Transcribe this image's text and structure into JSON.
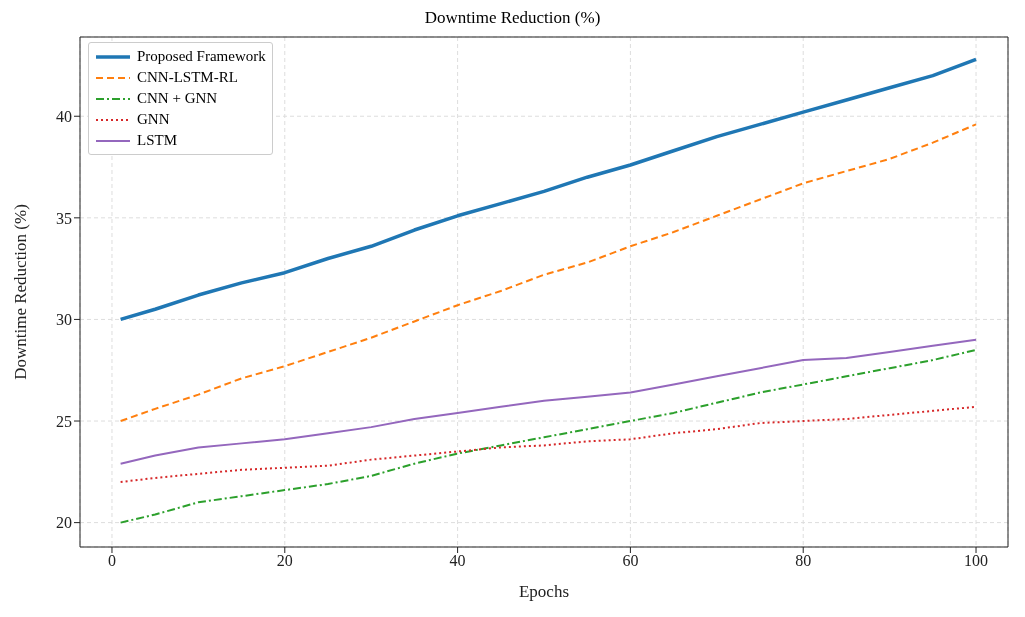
{
  "chart_data": {
    "type": "line",
    "title": "Downtime Reduction (%)",
    "xlabel": "Epochs",
    "ylabel": "Downtime Reduction (%)",
    "x": [
      1,
      5,
      10,
      15,
      20,
      25,
      30,
      35,
      40,
      45,
      50,
      55,
      60,
      65,
      70,
      75,
      80,
      85,
      90,
      95,
      100
    ],
    "series": [
      {
        "name": "Proposed Framework",
        "color": "#1f77b4",
        "line_style": "solid",
        "values": [
          30.0,
          30.5,
          31.2,
          31.8,
          32.3,
          33.0,
          33.6,
          34.4,
          35.1,
          35.7,
          36.3,
          37.0,
          37.6,
          38.3,
          39.0,
          39.6,
          40.2,
          40.8,
          41.4,
          42.0,
          42.8
        ]
      },
      {
        "name": "CNN-LSTM-RL",
        "color": "#ff7f0e",
        "line_style": "dashed",
        "values": [
          25.0,
          25.6,
          26.3,
          27.1,
          27.7,
          28.4,
          29.1,
          29.9,
          30.7,
          31.4,
          32.2,
          32.8,
          33.6,
          34.3,
          35.1,
          35.9,
          36.7,
          37.3,
          37.9,
          38.7,
          39.6
        ]
      },
      {
        "name": "CNN + GNN",
        "color": "#2ca02c",
        "line_style": "dashdot",
        "values": [
          20.0,
          20.4,
          21.0,
          21.3,
          21.6,
          21.9,
          22.3,
          22.9,
          23.4,
          23.8,
          24.2,
          24.6,
          25.0,
          25.4,
          25.9,
          26.4,
          26.8,
          27.2,
          27.6,
          28.0,
          28.5
        ]
      },
      {
        "name": "GNN",
        "color": "#d62728",
        "line_style": "dotted",
        "values": [
          22.0,
          22.2,
          22.4,
          22.6,
          22.7,
          22.8,
          23.1,
          23.3,
          23.5,
          23.7,
          23.8,
          24.0,
          24.1,
          24.4,
          24.6,
          24.9,
          25.0,
          25.1,
          25.3,
          25.5,
          25.7
        ]
      },
      {
        "name": "LSTM",
        "color": "#9467bd",
        "line_style": "solid",
        "values": [
          22.9,
          23.3,
          23.7,
          23.9,
          24.1,
          24.4,
          24.7,
          25.1,
          25.4,
          25.7,
          26.0,
          26.2,
          26.4,
          26.8,
          27.2,
          27.6,
          28.0,
          28.1,
          28.4,
          28.7,
          29.0
        ]
      }
    ],
    "xlim": [
      -3.7,
      103.7
    ],
    "xticks": [
      0,
      20,
      40,
      60,
      80,
      100
    ],
    "ylim": [
      18.8,
      43.9
    ],
    "yticks": [
      20,
      25,
      30,
      35,
      40
    ],
    "grid": true,
    "legend": "top left",
    "marker": "none"
  }
}
